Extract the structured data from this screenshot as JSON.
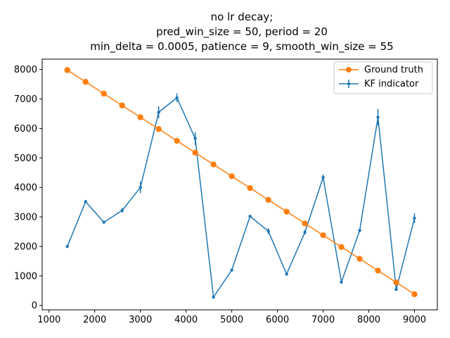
{
  "chart_data": {
    "type": "line",
    "title_lines": [
      "no lr decay;",
      "pred_win_size = 50, period = 20",
      "min_delta = 0.0005, patience = 9, smooth_win_size = 55"
    ],
    "xlabel": "",
    "ylabel": "",
    "xlim": [
      850,
      9500
    ],
    "ylim": [
      -150,
      8350
    ],
    "xticks": [
      1000,
      2000,
      3000,
      4000,
      5000,
      6000,
      7000,
      8000,
      9000
    ],
    "yticks": [
      0,
      1000,
      2000,
      3000,
      4000,
      5000,
      6000,
      7000,
      8000
    ],
    "grid": false,
    "legend_position": "top-right",
    "series": [
      {
        "name": "Ground truth",
        "color": "#ff7f0e",
        "marker": "circle",
        "x": [
          1400,
          1800,
          2200,
          2600,
          3000,
          3400,
          3800,
          4200,
          4600,
          5000,
          5400,
          5800,
          6200,
          6600,
          7000,
          7400,
          7800,
          8200,
          8600,
          9000
        ],
        "y": [
          7980,
          7580,
          7180,
          6780,
          6380,
          5980,
          5580,
          5180,
          4780,
          4380,
          3980,
          3580,
          3180,
          2780,
          2380,
          1980,
          1580,
          1180,
          780,
          380
        ]
      },
      {
        "name": "KF indicator",
        "color": "#1f77b4",
        "marker": "point",
        "errorbars": true,
        "x": [
          1400,
          1800,
          2200,
          2600,
          3000,
          3400,
          3800,
          4200,
          4600,
          5000,
          5400,
          5800,
          6200,
          6600,
          7000,
          7400,
          7800,
          8200,
          8600,
          9000
        ],
        "y": [
          2000,
          3520,
          2820,
          3220,
          4000,
          6550,
          7040,
          5660,
          280,
          1200,
          3020,
          2520,
          1060,
          2480,
          4340,
          790,
          2540,
          6380,
          540,
          2960
        ],
        "yerr": [
          30,
          40,
          30,
          80,
          200,
          200,
          150,
          220,
          40,
          40,
          40,
          100,
          40,
          80,
          100,
          30,
          40,
          280,
          40,
          170
        ]
      }
    ]
  }
}
